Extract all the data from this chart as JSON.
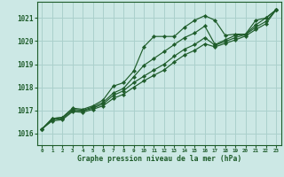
{
  "bg_color": "#cce8e5",
  "grid_color": "#aad0cc",
  "line_color": "#1e5c2a",
  "text_color": "#1e5c2a",
  "xlabel": "Graphe pression niveau de la mer (hPa)",
  "xlim": [
    -0.5,
    23.5
  ],
  "ylim": [
    1015.5,
    1021.7
  ],
  "yticks": [
    1016,
    1017,
    1018,
    1019,
    1020,
    1021
  ],
  "xticks": [
    0,
    1,
    2,
    3,
    4,
    5,
    6,
    7,
    8,
    9,
    10,
    11,
    12,
    13,
    14,
    15,
    16,
    17,
    18,
    19,
    20,
    21,
    22,
    23
  ],
  "series": [
    [
      1016.2,
      1016.65,
      1016.7,
      1017.1,
      1017.05,
      1017.2,
      1017.45,
      1018.05,
      1018.2,
      1018.7,
      1019.75,
      1020.2,
      1020.2,
      1020.2,
      1020.6,
      1020.9,
      1021.1,
      1020.9,
      1020.25,
      1020.3,
      1020.3,
      1020.9,
      1021.0,
      1021.35
    ],
    [
      1016.2,
      1016.65,
      1016.7,
      1017.05,
      1017.0,
      1017.15,
      1017.35,
      1017.75,
      1017.95,
      1018.45,
      1018.95,
      1019.25,
      1019.55,
      1019.85,
      1020.15,
      1020.35,
      1020.65,
      1019.85,
      1020.05,
      1020.25,
      1020.3,
      1020.7,
      1021.0,
      1021.35
    ],
    [
      1016.2,
      1016.6,
      1016.65,
      1017.0,
      1016.98,
      1017.1,
      1017.28,
      1017.65,
      1017.85,
      1018.2,
      1018.48,
      1018.75,
      1019.0,
      1019.35,
      1019.65,
      1019.85,
      1020.15,
      1019.82,
      1019.98,
      1020.15,
      1020.28,
      1020.6,
      1020.85,
      1021.35
    ],
    [
      1016.2,
      1016.55,
      1016.6,
      1016.95,
      1016.92,
      1017.05,
      1017.2,
      1017.52,
      1017.7,
      1018.0,
      1018.28,
      1018.52,
      1018.75,
      1019.1,
      1019.4,
      1019.6,
      1019.88,
      1019.75,
      1019.9,
      1020.05,
      1020.22,
      1020.5,
      1020.75,
      1021.35
    ]
  ]
}
